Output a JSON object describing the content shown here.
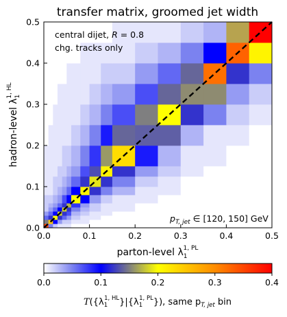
{
  "chart_data": {
    "type": "heatmap",
    "title": "transfer matrix, groomed jet width",
    "xlabel": "parton-level λ",
    "xlabel_sup": "1, PL",
    "xlabel_sub": "1",
    "ylabel": "hadron-level λ",
    "ylabel_sup": "1, HL",
    "ylabel_sub": "1",
    "xlim": [
      0.0,
      0.5
    ],
    "ylim": [
      0.0,
      0.5
    ],
    "x_ticks": [
      "0.0",
      "0.1",
      "0.2",
      "0.3",
      "0.4",
      "0.5"
    ],
    "y_ticks": [
      "0.0",
      "0.1",
      "0.2",
      "0.3",
      "0.4",
      "0.5"
    ],
    "annotations": {
      "line1": "central dijet, R = 0.8",
      "line1_pre": "central dijet, ",
      "line1_var": "R",
      "line1_post": " = 0.8",
      "line2": "chg. tracks only",
      "pt_label_main": "p",
      "pt_label_sub": "T, jet",
      "pt_label_post": " ∈ [120, 150] GeV"
    },
    "diagonal_line": {
      "style": "dashed",
      "color": "#000000",
      "from": [
        0.0,
        0.0
      ],
      "to": [
        0.5,
        0.5
      ]
    },
    "colorbar": {
      "range": [
        0.0,
        0.4
      ],
      "ticks": [
        "0.0",
        "0.1",
        "0.2",
        "0.3",
        "0.4"
      ],
      "label": "T({λ1 HL}|{λ1 PL}), same pT,jet bin",
      "label_pre": "T",
      "label_text": "({λ",
      "label_mid": "}|{λ",
      "label_end": "}), same p",
      "label_sub_pt": "T, jet",
      "label_tail": " bin",
      "stops": [
        [
          0.0,
          "#ffffff"
        ],
        [
          0.125,
          "#7b82f0"
        ],
        [
          0.25,
          "#0000ff"
        ],
        [
          0.5,
          "#ffff00"
        ],
        [
          0.75,
          "#ff8c00"
        ],
        [
          1.0,
          "#ff0000"
        ]
      ]
    },
    "bins": [
      0,
      0.01,
      0.02,
      0.03,
      0.04,
      0.05,
      0.06,
      0.08,
      0.1,
      0.125,
      0.15,
      0.2,
      0.25,
      0.3,
      0.35,
      0.4,
      0.45,
      0.5
    ],
    "cells": [
      [
        0.35,
        0.05,
        0.02,
        0.01,
        0.01,
        0.01,
        0,
        0,
        0,
        0,
        0,
        0,
        0,
        0,
        0,
        0,
        0
      ],
      [
        0.15,
        0.25,
        0.1,
        0.04,
        0.02,
        0.02,
        0.01,
        0.01,
        0,
        0,
        0,
        0,
        0,
        0,
        0,
        0,
        0
      ],
      [
        0.06,
        0.12,
        0.2,
        0.12,
        0.06,
        0.04,
        0.02,
        0.01,
        0.01,
        0,
        0,
        0,
        0,
        0,
        0,
        0,
        0
      ],
      [
        0.04,
        0.06,
        0.1,
        0.18,
        0.12,
        0.07,
        0.03,
        0.02,
        0.01,
        0.01,
        0,
        0,
        0,
        0,
        0,
        0,
        0
      ],
      [
        0.02,
        0.04,
        0.06,
        0.1,
        0.18,
        0.12,
        0.05,
        0.03,
        0.02,
        0.01,
        0.01,
        0,
        0,
        0,
        0,
        0,
        0
      ],
      [
        0.02,
        0.03,
        0.04,
        0.06,
        0.12,
        0.17,
        0.08,
        0.04,
        0.02,
        0.01,
        0.01,
        0,
        0,
        0,
        0,
        0,
        0
      ],
      [
        0.02,
        0.02,
        0.03,
        0.04,
        0.07,
        0.1,
        0.2,
        0.1,
        0.04,
        0.02,
        0.01,
        0.01,
        0,
        0,
        0,
        0,
        0
      ],
      [
        0.01,
        0.01,
        0.02,
        0.03,
        0.04,
        0.06,
        0.1,
        0.21,
        0.12,
        0.05,
        0.03,
        0.01,
        0.01,
        0,
        0,
        0,
        0
      ],
      [
        0.01,
        0.01,
        0.02,
        0.02,
        0.03,
        0.04,
        0.06,
        0.12,
        0.19,
        0.12,
        0.05,
        0.02,
        0.01,
        0,
        0,
        0,
        0
      ],
      [
        0.01,
        0.01,
        0.01,
        0.02,
        0.02,
        0.03,
        0.04,
        0.07,
        0.13,
        0.21,
        0.12,
        0.04,
        0.02,
        0.01,
        0,
        0,
        0
      ],
      [
        0.01,
        0.01,
        0.01,
        0.01,
        0.02,
        0.02,
        0.03,
        0.05,
        0.08,
        0.16,
        0.23,
        0.09,
        0.03,
        0.01,
        0.01,
        0,
        0
      ],
      [
        0,
        0.01,
        0.01,
        0.01,
        0.01,
        0.01,
        0.02,
        0.03,
        0.05,
        0.09,
        0.14,
        0.2,
        0.09,
        0.03,
        0.01,
        0.01,
        0
      ],
      [
        0,
        0,
        0.01,
        0.01,
        0.01,
        0.01,
        0.01,
        0.02,
        0.03,
        0.05,
        0.07,
        0.15,
        0.2,
        0.12,
        0.05,
        0.02,
        0.01
      ],
      [
        0,
        0,
        0,
        0.01,
        0.01,
        0.01,
        0.01,
        0.01,
        0.02,
        0.03,
        0.04,
        0.07,
        0.14,
        0.27,
        0.13,
        0.04,
        0.02
      ],
      [
        0,
        0,
        0,
        0,
        0,
        0.01,
        0.01,
        0.01,
        0.01,
        0.02,
        0.02,
        0.04,
        0.06,
        0.14,
        0.32,
        0.12,
        0.05
      ],
      [
        0,
        0,
        0,
        0,
        0,
        0,
        0,
        0.01,
        0.01,
        0.01,
        0.01,
        0.02,
        0.03,
        0.05,
        0.1,
        0.33,
        0.21
      ],
      [
        0,
        0,
        0,
        0,
        0,
        0,
        0,
        0,
        0,
        0,
        0.01,
        0.01,
        0.01,
        0.02,
        0.03,
        0.14,
        0.4
      ]
    ],
    "cell_overrides": [
      {
        "x": 0.3,
        "y": 0.3,
        "color": "#8e8b71"
      },
      {
        "x": 0.35,
        "y": 0.3,
        "color": "#8e8b71"
      },
      {
        "x": 0.4,
        "y": 0.45,
        "color": "#b7a34f"
      },
      {
        "x": 0.2,
        "y": 0.2,
        "color": "#5f5fa5"
      },
      {
        "x": 0.25,
        "y": 0.2,
        "color": "#5f5fa5"
      }
    ]
  }
}
